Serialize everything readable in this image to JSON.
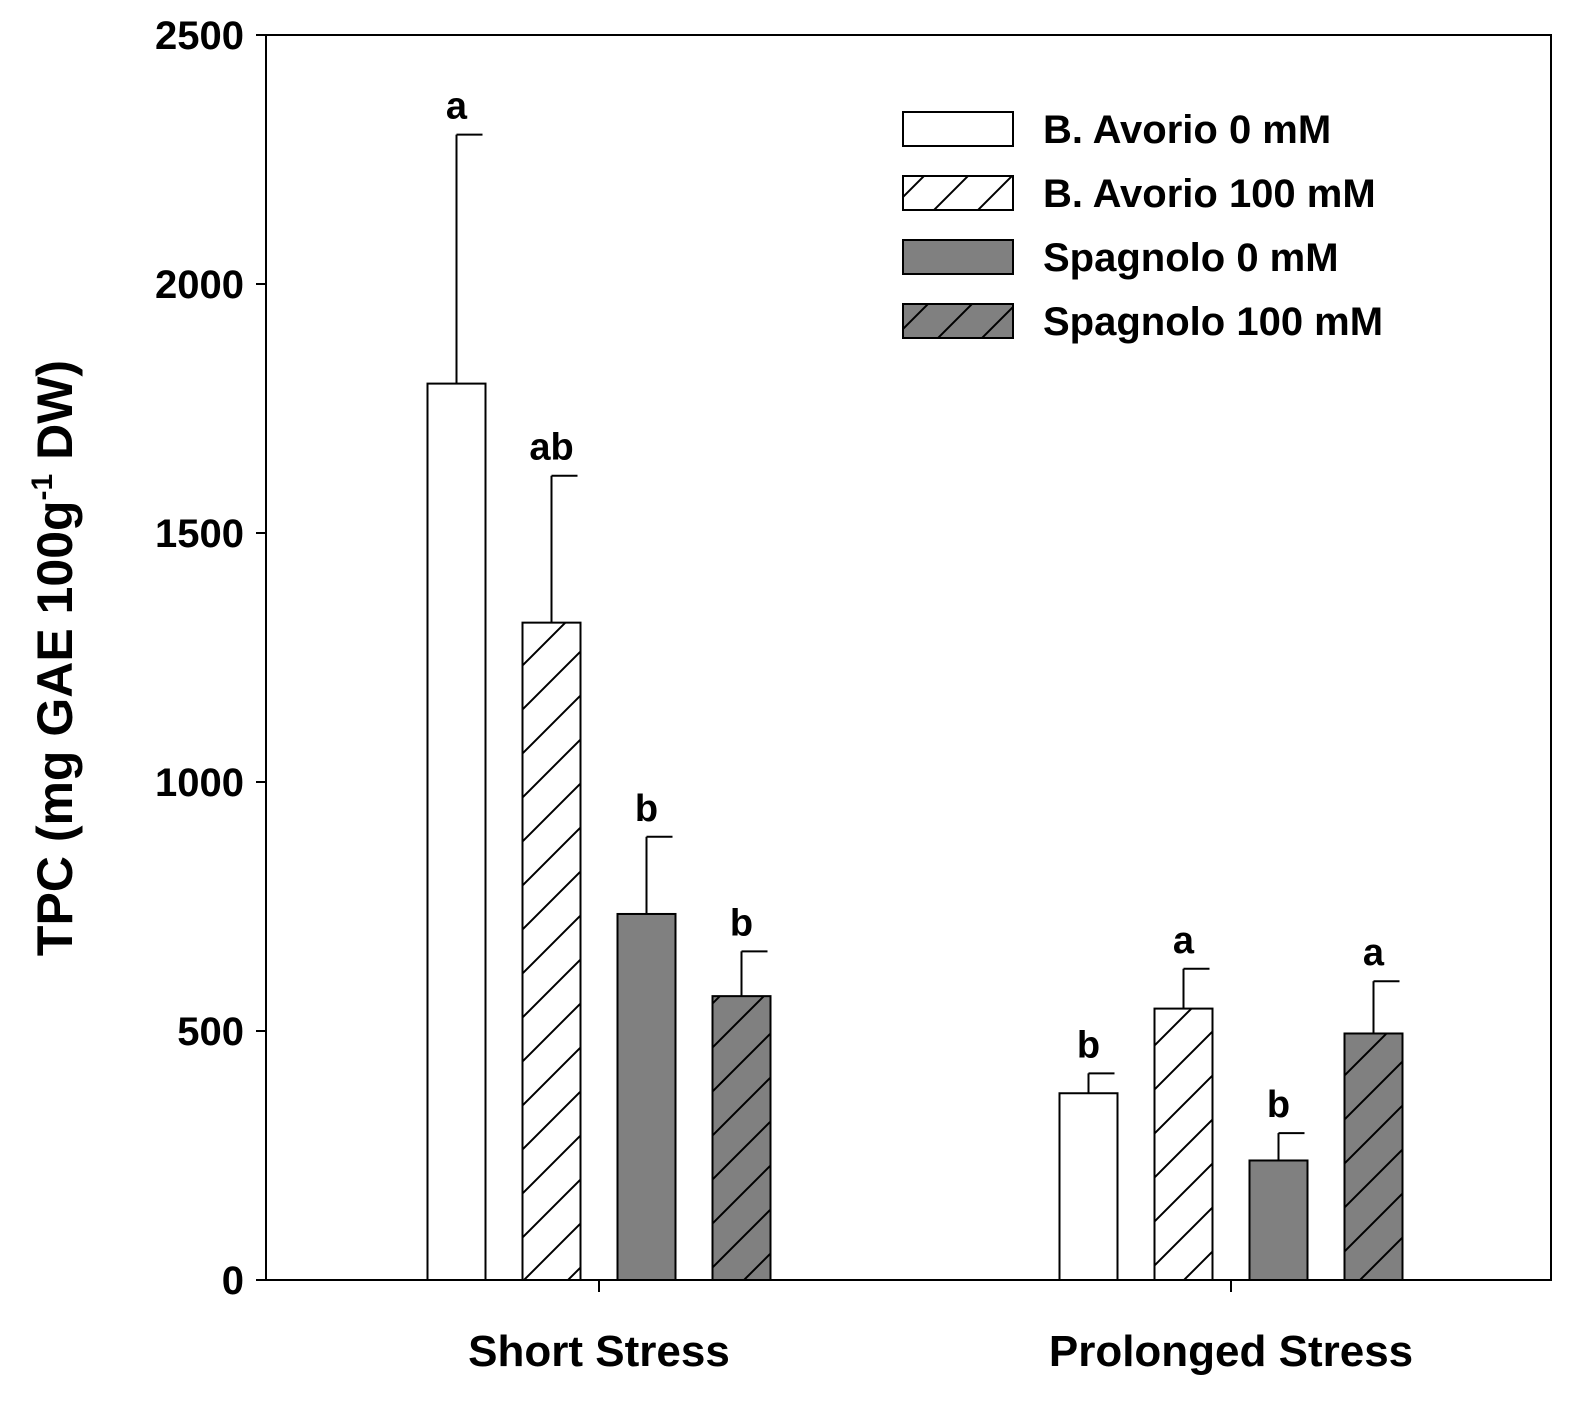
{
  "chart_data": {
    "type": "bar",
    "title": "",
    "xlabel": "",
    "ylabel": "TPC (mg GAE 100g",
    "ylabel_superscript": "-1",
    "ylabel_tail": " DW)",
    "ylim": [
      0,
      2500
    ],
    "yticks": [
      "0",
      "500",
      "1000",
      "1500",
      "2000",
      "2500"
    ],
    "categories": [
      "Short Stress",
      "Prolonged Stress"
    ],
    "series": [
      {
        "name": "B. Avorio 0 mM",
        "fill": "#ffffff",
        "hatch": false,
        "values": [
          1800,
          375
        ],
        "errors": [
          500,
          40
        ],
        "letters": [
          "a",
          "b"
        ]
      },
      {
        "name": "B. Avorio 100 mM",
        "fill": "#ffffff",
        "hatch": true,
        "values": [
          1320,
          545
        ],
        "errors": [
          295,
          80
        ],
        "letters": [
          "ab",
          "a"
        ]
      },
      {
        "name": "Spagnolo 0 mM",
        "fill": "#808080",
        "hatch": false,
        "values": [
          735,
          240
        ],
        "errors": [
          155,
          55
        ],
        "letters": [
          "b",
          "b"
        ]
      },
      {
        "name": "Spagnolo 100 mM",
        "fill": "#808080",
        "hatch": true,
        "values": [
          570,
          495
        ],
        "errors": [
          90,
          105
        ],
        "letters": [
          "b",
          "a"
        ]
      }
    ],
    "legend_position": "top-right"
  }
}
